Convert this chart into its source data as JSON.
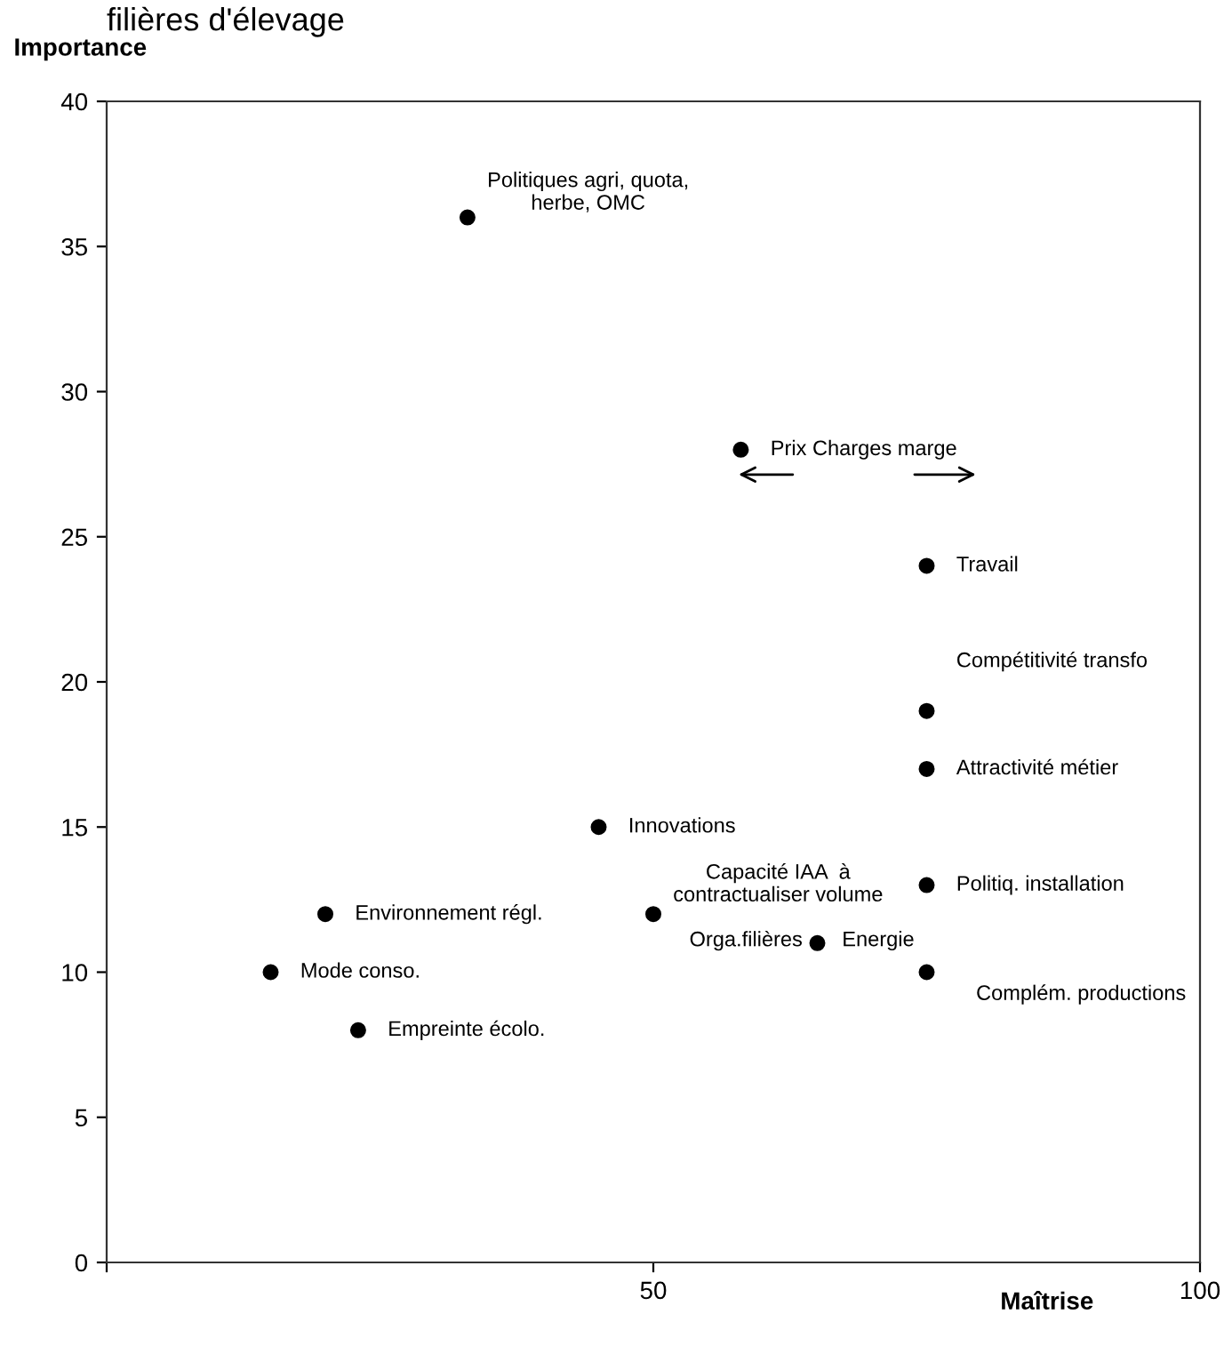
{
  "chart_data": {
    "type": "scatter",
    "title": "filières d'élevage",
    "xlabel": "Maîtrise",
    "ylabel": "Importance",
    "x": [
      33,
      58,
      75,
      75,
      75,
      45,
      50,
      75,
      65,
      75,
      20,
      15,
      23
    ],
    "values": [
      36,
      28,
      24,
      19,
      17,
      15,
      12,
      13,
      11,
      10,
      12,
      10,
      8
    ],
    "color": "#000000",
    "marker": "circle",
    "grid": false,
    "legend": false,
    "xlim": [
      0,
      100
    ],
    "ylim": [
      0,
      40
    ],
    "xticks": [
      {
        "value": 0,
        "label": null
      },
      50,
      100
    ],
    "yticks": [
      0,
      5,
      10,
      15,
      20,
      25,
      30,
      35,
      40
    ],
    "annotations": [
      {
        "text": "Politiques agri, quota,\nherbe, OMC",
        "x": 33,
        "y": 36
      },
      {
        "text": "Prix Charges marge",
        "x": 58,
        "y": 28
      },
      {
        "text": "Travail",
        "x": 75,
        "y": 24
      },
      {
        "text": "Compétitivité transfo",
        "x": 75,
        "y": 19
      },
      {
        "text": "Attractivité métier",
        "x": 75,
        "y": 17
      },
      {
        "text": "Innovations",
        "x": 45,
        "y": 15
      },
      {
        "text": "Capacité IAA  à\ncontractualiser volume",
        "x": 50,
        "y": 12
      },
      {
        "text": "Politiq. installation",
        "x": 75,
        "y": 13
      },
      {
        "text": "Orga.filières",
        "x": 65,
        "y": 11
      },
      {
        "text": "Energie",
        "x": 65,
        "y": 11
      },
      {
        "text": "Complém. productions",
        "x": 75,
        "y": 10
      },
      {
        "text": "Environnement régl.",
        "x": 20,
        "y": 12
      },
      {
        "text": "Mode conso.",
        "x": 15,
        "y": 10
      },
      {
        "text": "Empreinte écolo.",
        "x": 23,
        "y": 8
      }
    ]
  }
}
